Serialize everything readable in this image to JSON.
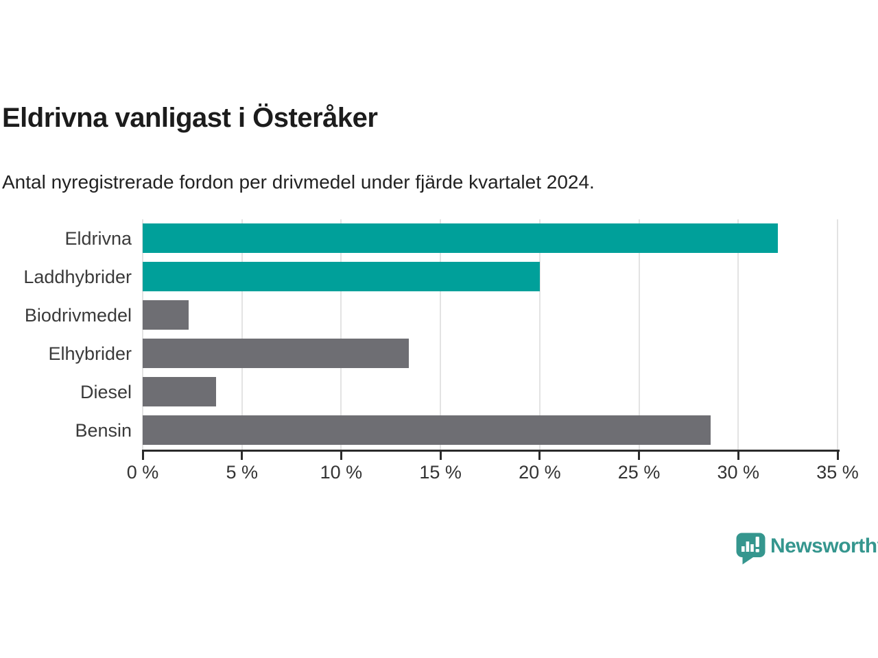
{
  "header": {
    "title": "Eldrivna vanligast i Österåker",
    "subtitle": "Antal nyregistrerade fordon per drivmedel under fjärde kvartalet 2024."
  },
  "chart_data": {
    "type": "bar",
    "orientation": "horizontal",
    "title": "Eldrivna vanligast i Österåker",
    "subtitle": "Antal nyregistrerade fordon per drivmedel under fjärde kvartalet 2024.",
    "categories": [
      "Eldrivna",
      "Laddhybrider",
      "Biodrivmedel",
      "Elhybrider",
      "Diesel",
      "Bensin"
    ],
    "values": [
      32,
      20,
      2.3,
      13.4,
      3.7,
      28.6
    ],
    "unit": "%",
    "xlim": [
      0,
      35
    ],
    "x_ticks": [
      0,
      5,
      10,
      15,
      20,
      25,
      30,
      35
    ],
    "x_tick_labels": [
      "0 %",
      "5 %",
      "10 %",
      "15 %",
      "20 %",
      "25 %",
      "30 %",
      "35 %"
    ],
    "grid": "vertical",
    "legend": "none",
    "bar_colors": [
      "#00a09a",
      "#00a09a",
      "#6e6e73",
      "#6e6e73",
      "#6e6e73",
      "#6e6e73"
    ],
    "colors": {
      "highlight": "#00a09a",
      "default": "#6e6e73",
      "axis": "#2b2b2b",
      "gridline": "#e3e3e3",
      "category_label": "#3a3a3a",
      "tick_label": "#333333"
    }
  },
  "footer": {
    "logo_text": "Newsworthy",
    "logo_color": "#35968e",
    "logo_icon": "speech-bubble-bar-chart-icon"
  }
}
